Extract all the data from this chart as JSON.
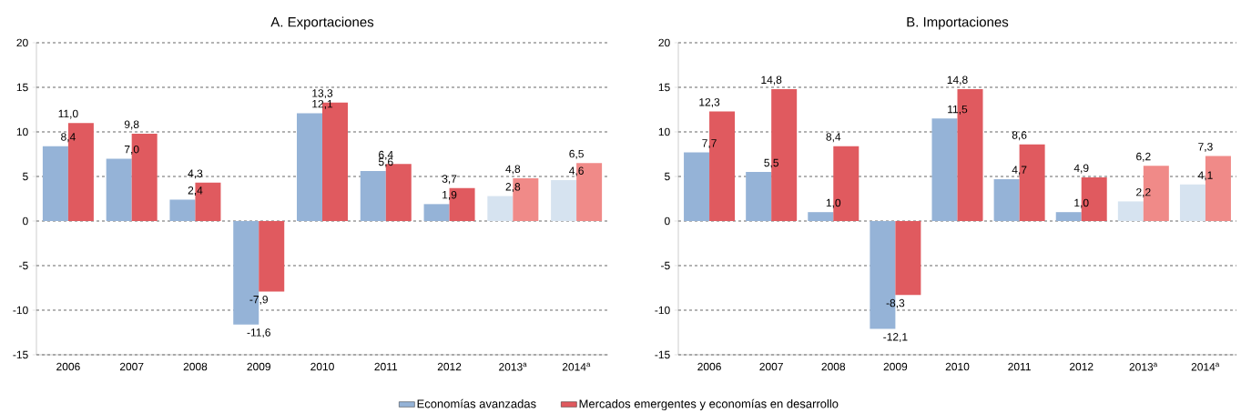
{
  "chart_data": [
    {
      "type": "bar",
      "title": "A. Exportaciones",
      "categories": [
        "2006",
        "2007",
        "2008",
        "2009",
        "2010",
        "2011",
        "2012",
        "2013$^{a}$",
        "2014$^{a}$"
      ],
      "ylim": [
        -15,
        20
      ],
      "yticks": [
        -15,
        -10,
        -5,
        0,
        5,
        10,
        15,
        20
      ],
      "grid": "y",
      "legend": "bottom",
      "series": [
        {
          "name": "Economías avanzadas",
          "color": "#95b3d7",
          "colors": [
            "#95b3d7",
            "#95b3d7",
            "#95b3d7",
            "#95b3d7",
            "#95b3d7",
            "#95b3d7",
            "#95b3d7",
            "#d6e3f0",
            "#d6e3f0"
          ],
          "values": [
            8.4,
            7.0,
            2.4,
            -11.6,
            12.1,
            5.6,
            1.9,
            2.8,
            4.6
          ],
          "value_labels": [
            "8,4",
            "7,0",
            "2,4",
            "-11,6",
            "12,1",
            "5,6",
            "1,9",
            "2,8",
            "4,6"
          ]
        },
        {
          "name": "Mercados emergentes y economías en desarrollo",
          "color": "#e05a5f",
          "colors": [
            "#e05a5f",
            "#e05a5f",
            "#e05a5f",
            "#e05a5f",
            "#e05a5f",
            "#e05a5f",
            "#e05a5f",
            "#f08a88",
            "#f08a88"
          ],
          "values": [
            11.0,
            9.8,
            4.3,
            -7.9,
            13.3,
            6.4,
            3.7,
            4.8,
            6.5
          ],
          "value_labels": [
            "11,0",
            "9,8",
            "4,3",
            "-7,9",
            "13,3",
            "6,4",
            "3,7",
            "4,8",
            "6,5"
          ]
        }
      ]
    },
    {
      "type": "bar",
      "title": "B. Importaciones",
      "categories": [
        "2006",
        "2007",
        "2008",
        "2009",
        "2010",
        "2011",
        "2012",
        "2013$^{a}$",
        "2014$^{a}$"
      ],
      "ylim": [
        -15,
        20
      ],
      "yticks": [
        -15,
        -10,
        -5,
        0,
        5,
        10,
        15,
        20
      ],
      "grid": "y",
      "series": [
        {
          "colors": [
            "#95b3d7",
            "#95b3d7",
            "#95b3d7",
            "#95b3d7",
            "#95b3d7",
            "#95b3d7",
            "#95b3d7",
            "#d6e3f0",
            "#d6e3f0"
          ],
          "values": [
            7.7,
            5.5,
            1.0,
            -12.1,
            11.5,
            4.7,
            1.0,
            2.2,
            4.1
          ],
          "value_labels": [
            "7,7",
            "5,5",
            "1,0",
            "-12,1",
            "11,5",
            "4,7",
            "1,0",
            "2,2",
            "4,1"
          ]
        },
        {
          "colors": [
            "#e05a5f",
            "#e05a5f",
            "#e05a5f",
            "#e05a5f",
            "#e05a5f",
            "#e05a5f",
            "#e05a5f",
            "#f08a88",
            "#f08a88"
          ],
          "values": [
            12.3,
            14.8,
            8.4,
            -8.3,
            14.8,
            8.6,
            4.9,
            6.2,
            7.3
          ],
          "value_labels": [
            "12,3",
            "14,8",
            "8,4",
            "-8,3",
            "14,8",
            "8,6",
            "4,9",
            "6,2",
            "7,3"
          ]
        }
      ]
    }
  ]
}
